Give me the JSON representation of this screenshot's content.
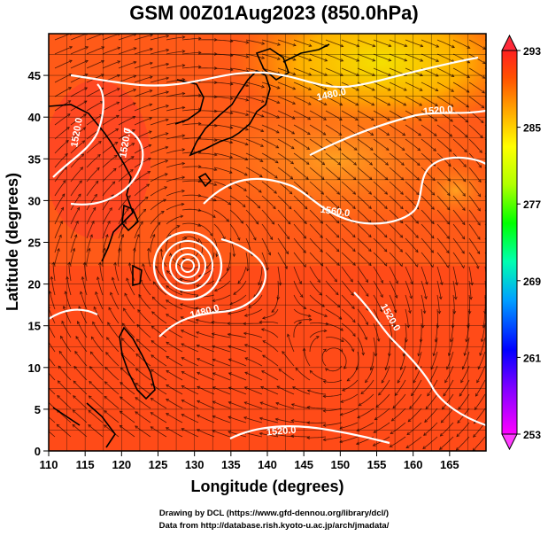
{
  "title": "GSM 00Z01Aug2023 (850.0hPa)",
  "map": {
    "xlabel": "Longitude (degrees)",
    "ylabel": "Latitude  (degrees)",
    "x_ticks": [
      "110",
      "115",
      "120",
      "125",
      "130",
      "135",
      "140",
      "145",
      "150",
      "155",
      "160",
      "165"
    ],
    "y_ticks": [
      "0",
      "5",
      "10",
      "15",
      "20",
      "25",
      "30",
      "35",
      "40",
      "45"
    ],
    "lon_range": [
      110,
      170
    ],
    "lat_range": [
      0,
      50
    ],
    "contour_labels": [
      "1480.0",
      "1520.0",
      "1520.0",
      "1520.0",
      "1560.0",
      "1480.0",
      "1520.0",
      "1520.0"
    ],
    "typhoon_center": {
      "lon": 129,
      "lat": 24.5
    }
  },
  "colorbar": {
    "ticks": [
      "293",
      "285",
      "277",
      "269",
      "261",
      "253"
    ],
    "min": 253,
    "max": 293,
    "colors": [
      "#ff00ff",
      "#0000ff",
      "#00a0ff",
      "#00ffb0",
      "#00ff00",
      "#b0ff00",
      "#ffff00",
      "#ffb000",
      "#ff6000",
      "#ff2000"
    ]
  },
  "credits": {
    "line1": "Drawing by DCL (https://www.gfd-dennou.org/library/dcl/)",
    "line2": "Data from http://database.rish.kyoto-u.ac.jp/arch/jmadata/"
  }
}
